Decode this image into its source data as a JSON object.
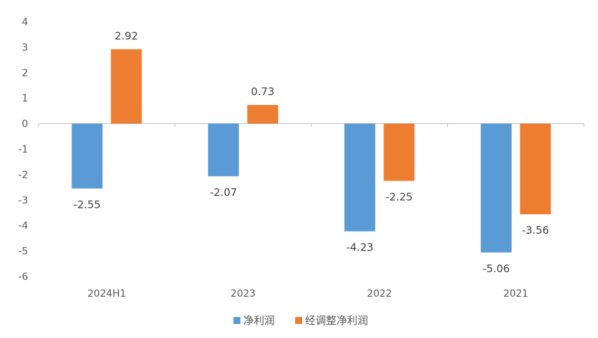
{
  "chart_data": {
    "type": "bar",
    "categories": [
      "2024H1",
      "2023",
      "2022",
      "2021"
    ],
    "series": [
      {
        "name": "净利润",
        "values": [
          -2.55,
          -2.07,
          -4.23,
          -5.06
        ],
        "color": "#5B9BD5"
      },
      {
        "name": "经调整净利润",
        "values": [
          2.92,
          0.73,
          -2.25,
          -3.56
        ],
        "color": "#ED7D31"
      }
    ],
    "data_labels": [
      [
        "-2.55",
        "-2.07",
        "-4.23",
        "-5.06"
      ],
      [
        "2.92",
        "0.73",
        "-2.25",
        "-3.56"
      ]
    ],
    "yticks": [
      "4",
      "3",
      "2",
      "1",
      "0",
      "-1",
      "-2",
      "-3",
      "-4",
      "-5",
      "-6"
    ],
    "ylim": [
      -6,
      4
    ],
    "grid": false,
    "legend": "bottom-center",
    "title": "",
    "xlabel": "",
    "ylabel": ""
  }
}
